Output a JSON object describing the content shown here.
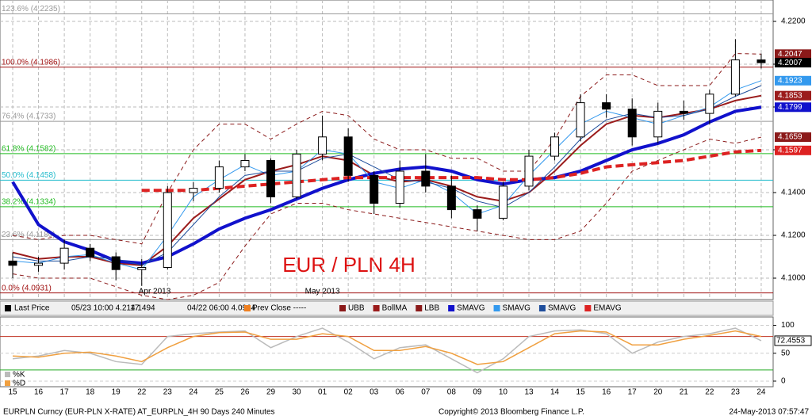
{
  "chart_data": [
    {
      "type": "candlestick",
      "title": "EUR / PLN 4H",
      "categories": [
        "15",
        "16",
        "17",
        "18",
        "19",
        "22",
        "23",
        "24",
        "25",
        "26",
        "29",
        "30",
        "01",
        "02",
        "03",
        "06",
        "07",
        "08",
        "09",
        "10",
        "13",
        "14",
        "15",
        "16",
        "17",
        "20",
        "21",
        "22",
        "23",
        "24"
      ],
      "months": [
        "Apr 2013",
        "May 2013"
      ],
      "open": [
        4.108,
        4.106,
        4.107,
        4.114,
        4.11,
        4.104,
        4.105,
        4.14,
        4.142,
        4.152,
        4.155,
        4.138,
        4.158,
        4.166,
        4.148,
        4.135,
        4.15,
        4.143,
        4.132,
        4.128,
        4.143,
        4.157,
        4.166,
        4.182,
        4.179,
        4.166,
        4.178,
        4.177,
        4.186,
        4.202
      ],
      "high": [
        4.112,
        4.11,
        4.118,
        4.116,
        4.112,
        4.109,
        4.143,
        4.145,
        4.155,
        4.158,
        4.156,
        4.16,
        4.176,
        4.17,
        4.15,
        4.155,
        4.158,
        4.148,
        4.134,
        4.145,
        4.16,
        4.168,
        4.186,
        4.186,
        4.184,
        4.182,
        4.183,
        4.188,
        4.2117,
        4.205
      ],
      "low": [
        4.1,
        4.103,
        4.104,
        4.108,
        4.099,
        4.0964,
        4.104,
        4.136,
        4.14,
        4.15,
        4.135,
        4.137,
        4.155,
        4.145,
        4.13,
        4.133,
        4.14,
        4.128,
        4.122,
        4.127,
        4.141,
        4.155,
        4.164,
        4.175,
        4.162,
        4.163,
        4.174,
        4.172,
        4.185,
        4.198
      ],
      "close": [
        4.106,
        4.107,
        4.114,
        4.11,
        4.104,
        4.105,
        4.14,
        4.142,
        4.152,
        4.155,
        4.138,
        4.158,
        4.166,
        4.148,
        4.135,
        4.15,
        4.143,
        4.132,
        4.128,
        4.143,
        4.157,
        4.166,
        4.182,
        4.179,
        4.166,
        4.178,
        4.177,
        4.186,
        4.202,
        4.2007
      ],
      "candle_up": "#ffffff",
      "candle_down": "#000000",
      "series": [
        {
          "name": "UBB",
          "color": "#8b1a1a",
          "dash": true,
          "width": 1,
          "end_label": true,
          "values": [
            4.12,
            4.118,
            4.12,
            4.12,
            4.118,
            4.116,
            4.14,
            4.16,
            4.172,
            4.172,
            4.165,
            4.172,
            4.178,
            4.176,
            4.165,
            4.16,
            4.16,
            4.156,
            4.156,
            4.15,
            4.15,
            4.165,
            4.185,
            4.195,
            4.195,
            4.19,
            4.19,
            4.19,
            4.205,
            4.2047
          ]
        },
        {
          "name": "BollMA",
          "color": "#9b1c1c",
          "dash": false,
          "width": 2,
          "end_label": true,
          "values": [
            4.112,
            4.109,
            4.11,
            4.11,
            4.107,
            4.106,
            4.115,
            4.128,
            4.137,
            4.146,
            4.15,
            4.153,
            4.157,
            4.155,
            4.148,
            4.145,
            4.146,
            4.143,
            4.138,
            4.136,
            4.14,
            4.15,
            4.162,
            4.172,
            4.176,
            4.175,
            4.177,
            4.179,
            4.183,
            4.1853
          ]
        },
        {
          "name": "LBB",
          "color": "#8b1a1a",
          "dash": true,
          "width": 1,
          "end_label": true,
          "values": [
            4.102,
            4.1,
            4.1,
            4.1,
            4.096,
            4.092,
            4.09,
            4.092,
            4.098,
            4.115,
            4.13,
            4.135,
            4.135,
            4.132,
            4.13,
            4.128,
            4.126,
            4.124,
            4.122,
            4.12,
            4.118,
            4.118,
            4.122,
            4.135,
            4.15,
            4.155,
            4.16,
            4.165,
            4.163,
            4.1659
          ]
        },
        {
          "name": "SMAVG",
          "color": "#1111cc",
          "dash": false,
          "width": 4,
          "end_label": true,
          "values": [
            4.145,
            4.125,
            4.117,
            4.113,
            4.108,
            4.107,
            4.11,
            4.116,
            4.123,
            4.128,
            4.132,
            4.137,
            4.142,
            4.146,
            4.149,
            4.151,
            4.152,
            4.15,
            4.146,
            4.144,
            4.146,
            4.147,
            4.15,
            4.155,
            4.16,
            4.163,
            4.167,
            4.173,
            4.178,
            4.1799
          ]
        },
        {
          "name": "SMAVG",
          "color": "#3399ee",
          "dash": false,
          "width": 1,
          "end_label": true,
          "values": [
            4.108,
            4.107,
            4.11,
            4.111,
            4.107,
            4.104,
            4.12,
            4.138,
            4.146,
            4.153,
            4.148,
            4.15,
            4.16,
            4.158,
            4.145,
            4.142,
            4.146,
            4.14,
            4.13,
            4.134,
            4.148,
            4.16,
            4.172,
            4.178,
            4.175,
            4.172,
            4.176,
            4.18,
            4.188,
            4.1923
          ]
        },
        {
          "name": "SMAVG",
          "color": "#1f4e9c",
          "dash": false,
          "width": 1,
          "end_label": false,
          "values": [
            4.11,
            4.108,
            4.108,
            4.11,
            4.109,
            4.106,
            4.112,
            4.125,
            4.138,
            4.148,
            4.15,
            4.15,
            4.156,
            4.158,
            4.152,
            4.146,
            4.145,
            4.142,
            4.136,
            4.133,
            4.14,
            4.152,
            4.165,
            4.174,
            4.177,
            4.175,
            4.176,
            4.179,
            4.185,
            4.19
          ]
        },
        {
          "name": "EMAVG",
          "color": "#dd2222",
          "dash": true,
          "width": 4,
          "end_label": true,
          "values": [
            null,
            null,
            null,
            null,
            null,
            4.141,
            4.141,
            4.141,
            4.142,
            4.143,
            4.144,
            4.145,
            4.146,
            4.147,
            4.147,
            4.147,
            4.147,
            4.147,
            4.147,
            4.146,
            4.146,
            4.147,
            4.149,
            4.152,
            4.153,
            4.154,
            4.155,
            4.157,
            4.159,
            4.1597
          ]
        }
      ],
      "last_label_color": "#000000",
      "fib": [
        {
          "label": "123.6% (4.2235)",
          "value": 4.2235,
          "color": "#999999"
        },
        {
          "label": "100.0% (4.1986)",
          "value": 4.1986,
          "color": "#a01010"
        },
        {
          "label": "76.4% (4.1733)",
          "value": 4.1733,
          "color": "#999999"
        },
        {
          "label": "61.8% (4.1582)",
          "value": 4.1582,
          "color": "#22bb22"
        },
        {
          "label": "50.0% (4.1458)",
          "value": 4.1458,
          "color": "#22bbcc"
        },
        {
          "label": "38.2% (4.1334)",
          "value": 4.1334,
          "color": "#22bb22"
        },
        {
          "label": "23.6% (4.1180)",
          "value": 4.118,
          "color": "#999999"
        },
        {
          "label": "0.0% (4.0931)",
          "value": 4.0931,
          "color": "#a01010"
        }
      ],
      "ylim": [
        4.09,
        4.23
      ],
      "yticks": [
        {
          "value": 4.1,
          "label": "4.1000"
        },
        {
          "value": 4.12,
          "label": "4.1200"
        },
        {
          "value": 4.14,
          "label": "4.1400"
        },
        {
          "value": 4.16,
          "label": "4.1600"
        },
        {
          "value": 4.18,
          "label": "4.1800"
        },
        {
          "value": 4.2,
          "label": "4.2000"
        },
        {
          "value": 4.22,
          "label": "4.2200"
        }
      ],
      "grid": true,
      "legend_info": [
        "Last Price",
        "05/23 10:00 4.2117",
        "4.1494",
        "04/22 06:00 4.0964",
        "Prev Close -----"
      ]
    },
    {
      "type": "line",
      "series": [
        {
          "name": "%K",
          "color": "#bbbbbb",
          "values": [
            40,
            45,
            55,
            50,
            35,
            30,
            80,
            85,
            88,
            90,
            60,
            80,
            95,
            70,
            40,
            60,
            65,
            40,
            15,
            40,
            80,
            90,
            92,
            85,
            50,
            70,
            80,
            85,
            95,
            72.4553
          ]
        },
        {
          "name": "%D",
          "color": "#f0a040",
          "values": [
            45,
            43,
            50,
            52,
            45,
            35,
            60,
            80,
            87,
            88,
            75,
            75,
            85,
            80,
            55,
            55,
            62,
            50,
            30,
            35,
            60,
            85,
            90,
            88,
            65,
            65,
            75,
            82,
            90,
            80
          ]
        }
      ],
      "hlines": [
        {
          "value": 80,
          "color": "#c03020"
        },
        {
          "value": 20,
          "color": "#22aa22"
        }
      ],
      "ylim": [
        -10,
        115
      ],
      "yticks": [
        0,
        50,
        100
      ],
      "grid": true
    }
  ],
  "footer": [
    "EURPLN Curncy (EUR-PLN X-RATE) AT_EURPLN_4H 90 Days 240 Minutes",
    "Copyright© 2013 Bloomberg Finance L.P.",
    "24-May-2013 07:57:47"
  ]
}
